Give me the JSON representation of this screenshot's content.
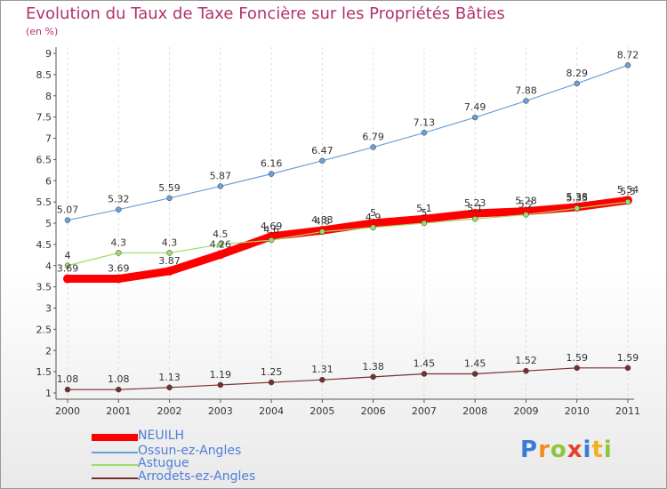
{
  "header": {
    "title": "Evolution du Taux de Taxe Foncière sur les Propriétés Bâties",
    "subtitle": "(en %)"
  },
  "chart_data": {
    "type": "line",
    "title": "Evolution du Taux de Taxe Foncière sur les Propriétés Bâties",
    "ylabel": "(en %)",
    "xlabel": "",
    "categories": [
      "2000",
      "2001",
      "2002",
      "2003",
      "2004",
      "2005",
      "2006",
      "2007",
      "2008",
      "2009",
      "2010",
      "2011"
    ],
    "ylim": [
      1,
      9
    ],
    "yticks": [
      "1",
      "1.5",
      "2",
      "2.5",
      "3",
      "3.5",
      "4",
      "4.5",
      "5",
      "5.5",
      "6",
      "6.5",
      "7",
      "7.5",
      "8",
      "8.5",
      "9"
    ],
    "series": [
      {
        "name": "NEUILH",
        "color": "#ff0000",
        "values": [
          3.69,
          3.69,
          3.87,
          4.26,
          4.69,
          4.83,
          5.0,
          5.1,
          5.23,
          5.28,
          5.38,
          5.54
        ],
        "labels": [
          "3.69",
          "3.69",
          "3.87",
          "4.26",
          "4.69",
          "4.83",
          "5",
          "5.1",
          "5.23",
          "5.28",
          "5.38",
          "5.54"
        ]
      },
      {
        "name": "Ossun-ez-Angles",
        "color": "#6ca0dc",
        "values": [
          5.07,
          5.32,
          5.59,
          5.87,
          6.16,
          6.47,
          6.79,
          7.13,
          7.49,
          7.88,
          8.29,
          8.72
        ],
        "labels": [
          "5.07",
          "5.32",
          "5.59",
          "5.87",
          "6.16",
          "6.47",
          "6.79",
          "7.13",
          "7.49",
          "7.88",
          "8.29",
          "8.72"
        ]
      },
      {
        "name": "Astugue",
        "color": "#99dd66",
        "values": [
          4.0,
          4.3,
          4.3,
          4.5,
          4.6,
          4.8,
          4.9,
          5.0,
          5.1,
          5.2,
          5.35,
          5.5
        ],
        "labels": [
          "4",
          "4.3",
          "4.3",
          "4.5",
          "4.6",
          "4.8",
          "4.9",
          "5",
          "5.1",
          "5.2",
          "5.35",
          "5.5"
        ]
      },
      {
        "name": "Arrodets-ez-Angles",
        "color": "#7a2e2e",
        "values": [
          1.08,
          1.08,
          1.13,
          1.19,
          1.25,
          1.31,
          1.38,
          1.45,
          1.45,
          1.52,
          1.59,
          1.59
        ],
        "labels": [
          "1.08",
          "1.08",
          "1.13",
          "1.19",
          "1.25",
          "1.31",
          "1.38",
          "1.45",
          "1.45",
          "1.52",
          "1.59",
          "1.59"
        ]
      }
    ]
  },
  "legend": {
    "items": [
      {
        "label": "NEUILH",
        "color": "#ff0000"
      },
      {
        "label": "Ossun-ez-Angles",
        "color": "#6ca0dc"
      },
      {
        "label": "Astugue",
        "color": "#99dd66"
      },
      {
        "label": "Arrodets-ez-Angles",
        "color": "#7a2e2e"
      }
    ]
  },
  "logo": {
    "text": "Proxiti",
    "letters": [
      {
        "ch": "P",
        "color": "#3a7bd5"
      },
      {
        "ch": "r",
        "color": "#f28c1e"
      },
      {
        "ch": "o",
        "color": "#8cc63f"
      },
      {
        "ch": "x",
        "color": "#e8402a"
      },
      {
        "ch": "i",
        "color": "#3a7bd5"
      },
      {
        "ch": "t",
        "color": "#f2b01e"
      },
      {
        "ch": "i",
        "color": "#8cc63f"
      }
    ]
  }
}
